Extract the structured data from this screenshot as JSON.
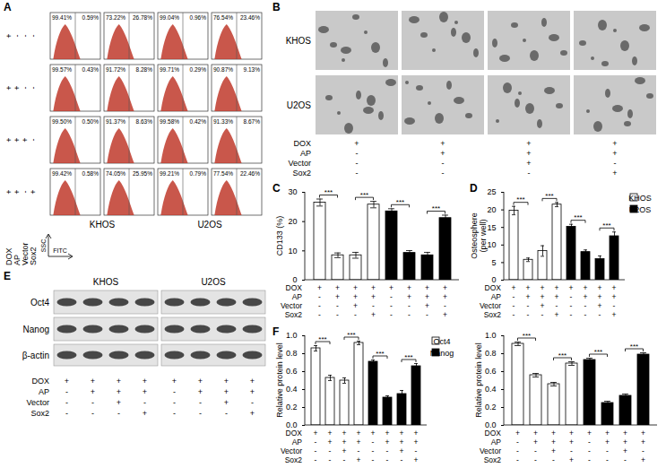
{
  "panel_labels": [
    "A",
    "B",
    "C",
    "D",
    "E",
    "F"
  ],
  "flow_cytometry": {
    "x_label": "FITC",
    "y_label": "SSC",
    "cell_lines": [
      "KHOS",
      "U2OS"
    ],
    "condition_labels": [
      "DOX",
      "AP",
      "Vector",
      "Sox2"
    ],
    "rows": [
      {
        "signs": [
          "+",
          "-",
          "-",
          "-"
        ],
        "gates": [
          [
            "99.41%",
            "0.59%"
          ],
          [
            "73.22%",
            "26.78%"
          ],
          [
            "99.04%",
            "0.96%"
          ],
          [
            "76.54%",
            "23.46%"
          ]
        ]
      },
      {
        "signs": [
          "+",
          "+",
          "-",
          "-"
        ],
        "gates": [
          [
            "99.57%",
            "0.43%"
          ],
          [
            "91.72%",
            "8.28%"
          ],
          [
            "99.71%",
            "0.29%"
          ],
          [
            "90.87%",
            "9.13%"
          ]
        ]
      },
      {
        "signs": [
          "+",
          "+",
          "+",
          "-"
        ],
        "gates": [
          [
            "99.50%",
            "0.50%"
          ],
          [
            "91.37%",
            "8.63%"
          ],
          [
            "99.58%",
            "0.42%"
          ],
          [
            "91.33%",
            "8.67%"
          ]
        ]
      },
      {
        "signs": [
          "+",
          "+",
          "-",
          "+"
        ],
        "gates": [
          [
            "99.42%",
            "0.58%"
          ],
          [
            "74.05%",
            "25.95%"
          ],
          [
            "99.21%",
            "0.79%"
          ],
          [
            "77.54%",
            "22.46%"
          ]
        ]
      }
    ]
  },
  "sphere_images": {
    "cell_lines": [
      "KHOS",
      "U2OS"
    ],
    "conditions": [
      {
        "label": "DOX",
        "signs": [
          "+",
          "+",
          "+",
          "+"
        ]
      },
      {
        "label": "AP",
        "signs": [
          "-",
          "+",
          "+",
          "+"
        ]
      },
      {
        "label": "Vector",
        "signs": [
          "-",
          "-",
          "+",
          "-"
        ]
      },
      {
        "label": "Sox2",
        "signs": [
          "-",
          "-",
          "-",
          "+"
        ]
      }
    ]
  },
  "western_blot": {
    "cell_lines": [
      "KHOS",
      "U2OS"
    ],
    "proteins": [
      "Oct4",
      "Nanog",
      "β-actin"
    ],
    "conditions": [
      {
        "label": "DOX",
        "signs": [
          "+",
          "+",
          "+",
          "+",
          "+",
          "+",
          "+",
          "+"
        ]
      },
      {
        "label": "AP",
        "signs": [
          "-",
          "+",
          "+",
          "+",
          "-",
          "+",
          "+",
          "+"
        ]
      },
      {
        "label": "Vector",
        "signs": [
          "-",
          "-",
          "+",
          "-",
          "-",
          "-",
          "+",
          "-"
        ]
      },
      {
        "label": "Sox2",
        "signs": [
          "-",
          "-",
          "-",
          "+",
          "-",
          "-",
          "-",
          "+"
        ]
      }
    ]
  },
  "chart_data": [
    {
      "type": "bar",
      "y_label": "CD133 (%)",
      "categories": [
        null,
        null,
        null,
        null
      ],
      "series": [
        {
          "name": "KHOS",
          "color": "#ffffff",
          "values": [
            26.5,
            8.5,
            8.5,
            25.8
          ],
          "errors": [
            1.2,
            0.8,
            1.0,
            1.1
          ]
        },
        {
          "name": "U2OS",
          "color": "#000000",
          "values": [
            23.5,
            9.3,
            8.5,
            21.2
          ],
          "errors": [
            0.9,
            0.8,
            1.0,
            1.0
          ]
        }
      ],
      "ylim": [
        0,
        30
      ],
      "yticks": [
        0,
        10,
        20,
        30
      ],
      "conditions": [
        {
          "label": "DOX",
          "signs": [
            "+",
            "+",
            "+",
            "+",
            "+",
            "+",
            "+",
            "+"
          ]
        },
        {
          "label": "AP",
          "signs": [
            "-",
            "+",
            "+",
            "+",
            "-",
            "+",
            "+",
            "+"
          ]
        },
        {
          "label": "Vector",
          "signs": [
            "-",
            "-",
            "+",
            "-",
            "-",
            "-",
            "+",
            "-"
          ]
        },
        {
          "label": "Sox2",
          "signs": [
            "-",
            "-",
            "-",
            "+",
            "-",
            "-",
            "-",
            "+"
          ]
        }
      ],
      "significance": [
        {
          "series": "KHOS",
          "between": [
            0,
            1
          ],
          "label": "***"
        },
        {
          "series": "KHOS",
          "between": [
            2,
            3
          ],
          "label": "***"
        },
        {
          "series": "U2OS",
          "between": [
            0,
            1
          ],
          "label": "***"
        },
        {
          "series": "U2OS",
          "between": [
            2,
            3
          ],
          "label": "***"
        }
      ]
    },
    {
      "type": "bar",
      "y_label": "Osteosphere\n(per well)",
      "categories": [
        null,
        null,
        null,
        null
      ],
      "series": [
        {
          "name": "KHOS",
          "color": "#ffffff",
          "values": [
            19.8,
            5.8,
            8.3,
            21.5
          ],
          "errors": [
            1.2,
            0.5,
            1.5,
            0.6
          ]
        },
        {
          "name": "U2OS",
          "color": "#000000",
          "values": [
            15.2,
            8.0,
            6.0,
            12.5
          ],
          "errors": [
            0.7,
            0.6,
            0.9,
            1.2
          ]
        }
      ],
      "ylim": [
        0,
        25
      ],
      "yticks": [
        0,
        5,
        10,
        15,
        20,
        25
      ],
      "legend": "right",
      "conditions": [
        {
          "label": "DOX",
          "signs": [
            "+",
            "+",
            "+",
            "+",
            "+",
            "+",
            "+",
            "+"
          ]
        },
        {
          "label": "AP",
          "signs": [
            "-",
            "+",
            "+",
            "+",
            "-",
            "+",
            "+",
            "+"
          ]
        },
        {
          "label": "Vector",
          "signs": [
            "-",
            "-",
            "+",
            "-",
            "-",
            "-",
            "+",
            "-"
          ]
        },
        {
          "label": "Sox2",
          "signs": [
            "-",
            "-",
            "-",
            "+",
            "-",
            "-",
            "-",
            "+"
          ]
        }
      ],
      "significance": [
        {
          "series": "KHOS",
          "between": [
            0,
            1
          ],
          "label": "***"
        },
        {
          "series": "KHOS",
          "between": [
            2,
            3
          ],
          "label": "***"
        },
        {
          "series": "U2OS",
          "between": [
            0,
            1
          ],
          "label": "***"
        },
        {
          "series": "U2OS",
          "between": [
            2,
            3
          ],
          "label": "***"
        }
      ]
    },
    {
      "type": "bar",
      "y_label": "Relative protein level",
      "categories": [
        null,
        null,
        null,
        null
      ],
      "series": [
        {
          "name": "Oct4",
          "color": "#ffffff",
          "values": [
            0.86,
            0.53,
            0.5,
            0.92
          ],
          "errors": [
            0.03,
            0.03,
            0.03,
            0.02
          ]
        },
        {
          "name": "Nanog",
          "color": "#000000",
          "values": [
            0.71,
            0.31,
            0.35,
            0.66
          ],
          "errors": [
            0.02,
            0.02,
            0.04,
            0.03
          ]
        }
      ],
      "ylim": [
        0,
        1.0
      ],
      "yticks": [
        {
          "value": 0,
          "label": "0.0"
        },
        {
          "value": 0.2,
          "label": "0.2"
        },
        {
          "value": 0.4,
          "label": "0.4"
        },
        {
          "value": 0.6,
          "label": "0.6"
        },
        {
          "value": 0.8,
          "label": "0.8"
        },
        {
          "value": 1.0,
          "label": "1.0"
        }
      ],
      "legend": "right",
      "conditions": [
        {
          "label": "DOX",
          "signs": [
            "+",
            "+",
            "+",
            "+",
            "+",
            "+",
            "+",
            "+"
          ]
        },
        {
          "label": "AP",
          "signs": [
            "-",
            "+",
            "+",
            "+",
            "-",
            "+",
            "+",
            "+"
          ]
        },
        {
          "label": "Vector",
          "signs": [
            "-",
            "-",
            "+",
            "-",
            "-",
            "-",
            "+",
            "-"
          ]
        },
        {
          "label": "Sox2",
          "signs": [
            "-",
            "-",
            "-",
            "+",
            "-",
            "-",
            "-",
            "+"
          ]
        }
      ],
      "significance": [
        {
          "series": "Oct4",
          "between": [
            0,
            1
          ],
          "label": "***"
        },
        {
          "series": "Oct4",
          "between": [
            2,
            3
          ],
          "label": "***"
        },
        {
          "series": "Nanog",
          "between": [
            0,
            1
          ],
          "label": "***"
        },
        {
          "series": "Nanog",
          "between": [
            2,
            3
          ],
          "label": "***"
        }
      ]
    },
    {
      "type": "bar",
      "y_label": "Relative protein level",
      "categories": [
        null,
        null,
        null,
        null
      ],
      "series": [
        {
          "name": "Oct4",
          "color": "#ffffff",
          "values": [
            0.91,
            0.56,
            0.46,
            0.69
          ],
          "errors": [
            0.02,
            0.02,
            0.02,
            0.02
          ]
        },
        {
          "name": "Nanog",
          "color": "#000000",
          "values": [
            0.73,
            0.25,
            0.33,
            0.79
          ],
          "errors": [
            0.02,
            0.02,
            0.02,
            0.02
          ]
        }
      ],
      "ylim": [
        0,
        1.0
      ],
      "yticks": [
        {
          "value": 0,
          "label": "0.0"
        },
        {
          "value": 0.2,
          "label": "0.2"
        },
        {
          "value": 0.4,
          "label": "0.4"
        },
        {
          "value": 0.6,
          "label": "0.6"
        },
        {
          "value": 0.8,
          "label": "0.8"
        },
        {
          "value": 1.0,
          "label": "1.0"
        }
      ],
      "conditions": [
        {
          "label": "DOX",
          "signs": [
            "+",
            "+",
            "+",
            "+",
            "+",
            "+",
            "+",
            "+"
          ]
        },
        {
          "label": "AP",
          "signs": [
            "-",
            "+",
            "+",
            "+",
            "-",
            "+",
            "+",
            "+"
          ]
        },
        {
          "label": "Vector",
          "signs": [
            "-",
            "-",
            "+",
            "-",
            "-",
            "-",
            "+",
            "-"
          ]
        },
        {
          "label": "Sox2",
          "signs": [
            "-",
            "-",
            "-",
            "+",
            "-",
            "-",
            "-",
            "+"
          ]
        }
      ],
      "significance": [
        {
          "series": "Oct4",
          "between": [
            0,
            1
          ],
          "label": "***"
        },
        {
          "series": "Oct4",
          "between": [
            2,
            3
          ],
          "label": "***"
        },
        {
          "series": "Nanog",
          "between": [
            0,
            1
          ],
          "label": "***"
        },
        {
          "series": "Nanog",
          "between": [
            2,
            3
          ],
          "label": "***"
        }
      ]
    }
  ]
}
